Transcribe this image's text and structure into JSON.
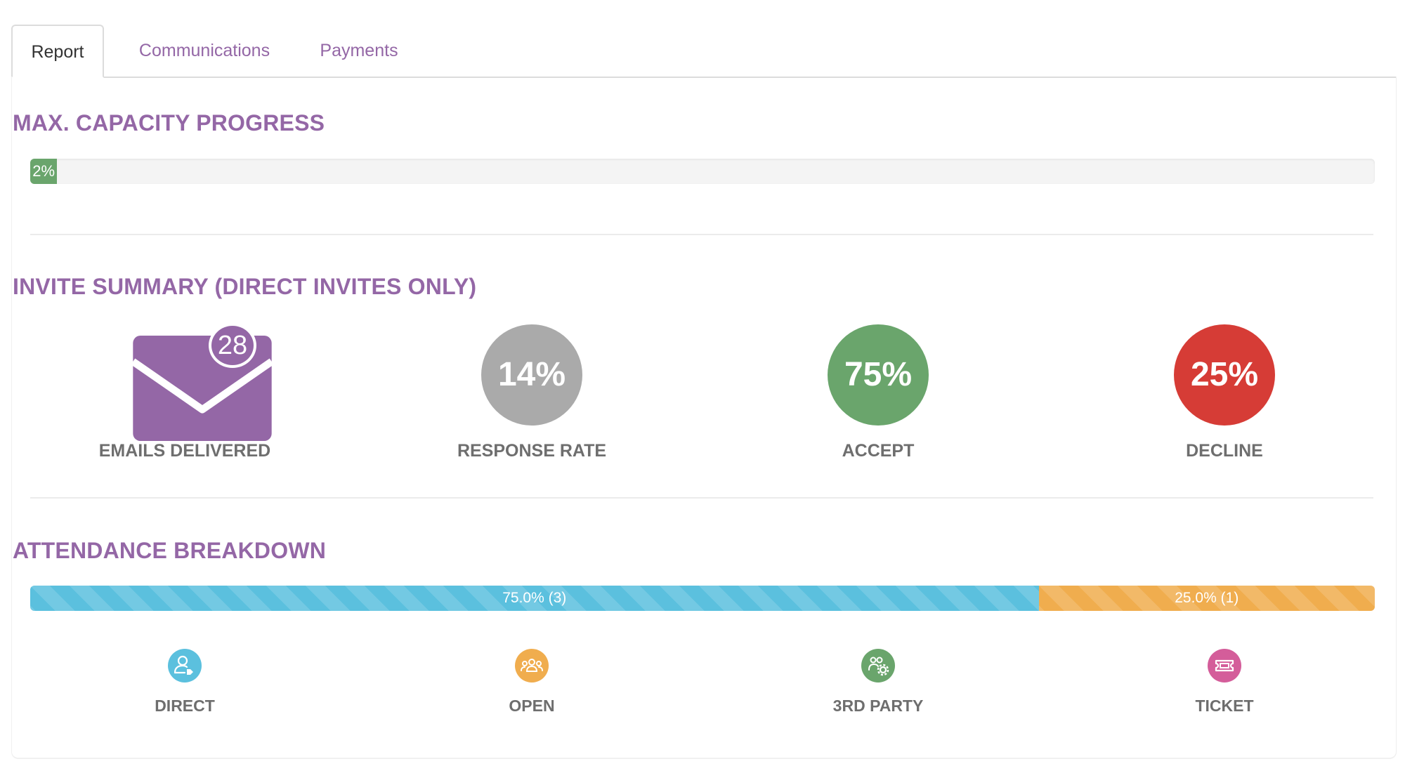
{
  "tabs": {
    "report": "Report",
    "communications": "Communications",
    "payments": "Payments"
  },
  "capacity": {
    "title": "MAX. CAPACITY PROGRESS",
    "percent_label": "2%",
    "percent": 2,
    "color": "#6aa56c"
  },
  "invite_summary": {
    "title": "INVITE SUMMARY (DIRECT INVITES ONLY)",
    "emails": {
      "count": "28",
      "label": "EMAILS DELIVERED",
      "icon": "envelope-icon",
      "color": "#9467a6"
    },
    "response": {
      "value": "14%",
      "label": "RESPONSE RATE",
      "color": "#aaaaaa"
    },
    "accept": {
      "value": "75%",
      "label": "ACCEPT",
      "color": "#6aa56c"
    },
    "decline": {
      "value": "25%",
      "label": "DECLINE",
      "color": "#d63c36"
    }
  },
  "attendance": {
    "title": "ATTENDANCE BREAKDOWN",
    "segments": [
      {
        "label": "75.0% (3)",
        "percent": 75,
        "color": "#5bc0de"
      },
      {
        "label": "25.0% (1)",
        "percent": 25,
        "color": "#f0ad4e"
      }
    ],
    "legend": [
      {
        "label": "DIRECT",
        "icon": "user-tag-icon",
        "color": "#5bc0de"
      },
      {
        "label": "OPEN",
        "icon": "group-icon",
        "color": "#f0ad4e"
      },
      {
        "label": "3RD PARTY",
        "icon": "users-gear-icon",
        "color": "#6aa56c"
      },
      {
        "label": "TICKET",
        "icon": "ticket-icon",
        "color": "#d45d9a"
      }
    ]
  }
}
